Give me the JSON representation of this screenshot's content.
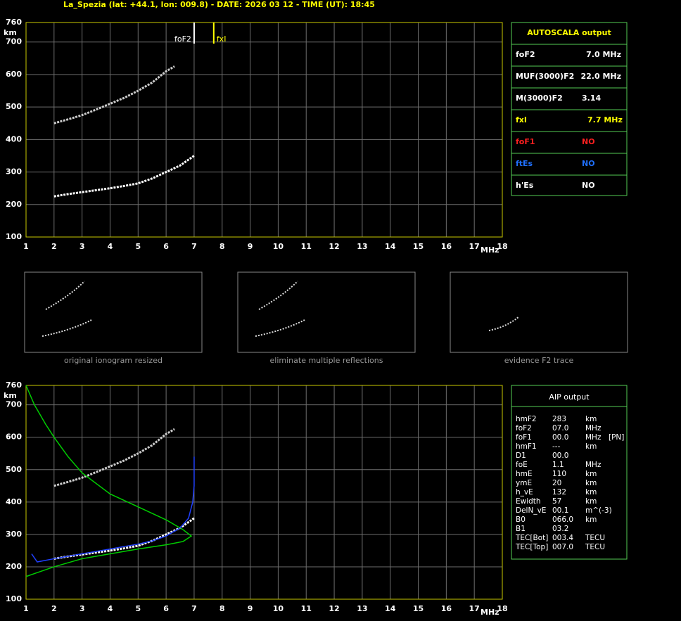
{
  "header": "La_Spezia (lat: +44.1, lon: 009.8) - DATE: 2026 03 12 - TIME (UT): 18:45",
  "chart_data": [
    {
      "type": "line",
      "xlim": [
        1,
        18
      ],
      "ylim": [
        100,
        760
      ],
      "xticks": [
        1,
        2,
        3,
        4,
        5,
        6,
        7,
        8,
        9,
        10,
        11,
        12,
        13,
        14,
        15,
        16,
        17,
        18
      ],
      "yticks": [
        100,
        200,
        300,
        400,
        500,
        600,
        700,
        760
      ],
      "x_label": "MHz",
      "y_label": "km",
      "grid": true,
      "markers": [
        {
          "label": "foF2",
          "x": 7.0,
          "color": "#ffffff"
        },
        {
          "label": "fxI",
          "x": 7.7,
          "color": "#ffff00"
        }
      ],
      "series": [
        {
          "color": "#ffffff",
          "x": [
            2,
            2.5,
            3,
            3.5,
            4,
            4.5,
            5,
            5.5,
            6,
            6.5,
            7
          ],
          "values": [
            225,
            232,
            238,
            244,
            250,
            257,
            265,
            280,
            300,
            320,
            350
          ]
        },
        {
          "color": "#cccccc",
          "x": [
            2,
            2.5,
            3,
            3.5,
            4,
            4.5,
            5,
            5.5,
            6,
            6.3
          ],
          "values": [
            450,
            462,
            475,
            492,
            510,
            528,
            550,
            575,
            610,
            625
          ]
        }
      ]
    },
    {
      "type": "line",
      "xlim": [
        1,
        18
      ],
      "ylim": [
        100,
        760
      ],
      "xticks": [
        1,
        2,
        3,
        4,
        5,
        6,
        7,
        8,
        9,
        10,
        11,
        12,
        13,
        14,
        15,
        16,
        17,
        18
      ],
      "yticks": [
        100,
        200,
        300,
        400,
        500,
        600,
        700,
        760
      ],
      "x_label": "MHz",
      "y_label": "km",
      "grid": true,
      "series": [
        {
          "color": "#ffffff",
          "x": [
            2,
            2.5,
            3,
            3.5,
            4,
            4.5,
            5,
            5.5,
            6,
            6.5,
            7
          ],
          "values": [
            225,
            232,
            238,
            244,
            250,
            257,
            265,
            280,
            300,
            320,
            350
          ]
        },
        {
          "color": "#cccccc",
          "x": [
            2,
            2.5,
            3,
            3.5,
            4,
            4.5,
            5,
            5.5,
            6,
            6.3
          ],
          "values": [
            450,
            462,
            475,
            492,
            510,
            528,
            550,
            575,
            610,
            625
          ]
        },
        {
          "color": "#00cc00",
          "x": [
            1,
            1.3,
            1.7,
            2,
            2.5,
            3,
            4,
            5,
            6,
            6.6,
            6.9,
            6.6,
            6,
            5,
            4,
            3,
            2,
            1.5,
            1
          ],
          "values": [
            760,
            700,
            640,
            600,
            540,
            490,
            425,
            385,
            345,
            315,
            295,
            278,
            268,
            255,
            240,
            225,
            200,
            185,
            170
          ]
        },
        {
          "color": "#2040ff",
          "x": [
            1.2,
            1.4,
            2,
            3,
            4,
            5,
            5.5,
            6,
            6.5,
            6.8,
            6.95,
            7,
            7
          ],
          "values": [
            240,
            215,
            225,
            240,
            255,
            270,
            280,
            295,
            320,
            350,
            400,
            450,
            540
          ]
        }
      ]
    }
  ],
  "autoscala": {
    "title": "AUTOSCALA output",
    "rows": [
      {
        "label": "foF2",
        "value": "7.0 MHz",
        "color": "#ffffff"
      },
      {
        "label": "MUF(3000)F2",
        "value": "22.0 MHz",
        "color": "#ffffff"
      },
      {
        "label": "M(3000)F2",
        "value": "3.14",
        "color": "#ffffff"
      },
      {
        "label": "fxI",
        "value": "7.7 MHz",
        "color": "#ffff00"
      },
      {
        "label": "foF1",
        "value": "NO",
        "color": "#ff2020"
      },
      {
        "label": "ftEs",
        "value": "NO",
        "color": "#2070ff"
      },
      {
        "label": "h'Es",
        "value": "NO",
        "color": "#ffffff"
      }
    ]
  },
  "thumbnails": [
    "original ionogram resized",
    "eliminate multiple reflections",
    "evidence F2 trace"
  ],
  "aip": {
    "title": "AIP output",
    "rows": [
      [
        "hmF2",
        "283",
        "km"
      ],
      [
        "foF2",
        "07.0",
        "MHz"
      ],
      [
        "foF1",
        "00.0",
        "MHz",
        "[PN]"
      ],
      [
        "hmF1",
        "---",
        "km"
      ],
      [
        "D1",
        "00.0"
      ],
      [
        "foE",
        "1.1",
        "MHz"
      ],
      [
        "hmE",
        "110",
        "km"
      ],
      [
        "ymE",
        "20",
        "km"
      ],
      [
        "h_vE",
        "132",
        "km"
      ],
      [
        "Ewidth",
        "57",
        "km"
      ],
      [
        "DelN_vE",
        "00.1",
        "m^(-3)"
      ],
      [
        "B0",
        "066.0",
        "km"
      ],
      [
        "B1",
        "03.2"
      ],
      [
        "TEC[Bot]",
        "003.4",
        "TECU"
      ],
      [
        "TEC[Top]",
        "007.0",
        "TECU"
      ]
    ]
  }
}
